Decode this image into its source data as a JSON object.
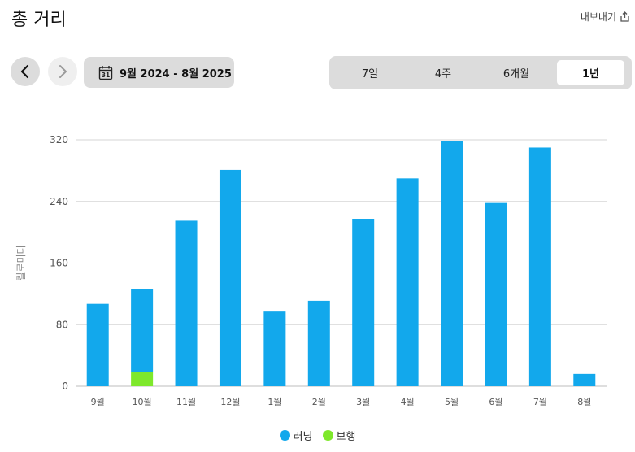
{
  "header": {
    "title": "총 거리",
    "export_label": "내보내기"
  },
  "nav": {
    "date_range": "9월 2024 - 8월 2025",
    "calendar_day": "31"
  },
  "periods": {
    "items": [
      {
        "label": "7일"
      },
      {
        "label": "4주"
      },
      {
        "label": "6개월"
      },
      {
        "label": "1년"
      }
    ],
    "selected": "1년"
  },
  "chart_data": {
    "type": "bar",
    "stacked": true,
    "ylabel": "킬로미터",
    "ylim": [
      0,
      320
    ],
    "yticks": [
      0,
      80,
      160,
      240,
      320
    ],
    "grid": true,
    "legend_position": "bottom",
    "categories": [
      "9월",
      "10월",
      "11월",
      "12월",
      "1월",
      "2월",
      "3월",
      "4월",
      "5월",
      "6월",
      "7월",
      "8월"
    ],
    "series": [
      {
        "name": "보행",
        "color": "#7ee82b",
        "values": [
          0,
          19,
          0,
          0,
          0,
          0,
          0,
          0,
          0,
          0,
          0,
          0
        ]
      },
      {
        "name": "러닝",
        "color": "#12a8ec",
        "values": [
          107,
          107,
          215,
          281,
          97,
          111,
          217,
          270,
          318,
          238,
          310,
          16
        ]
      }
    ]
  },
  "legend": {
    "items": [
      {
        "label": "러닝",
        "color": "#12a8ec"
      },
      {
        "label": "보행",
        "color": "#7ee82b"
      }
    ]
  }
}
